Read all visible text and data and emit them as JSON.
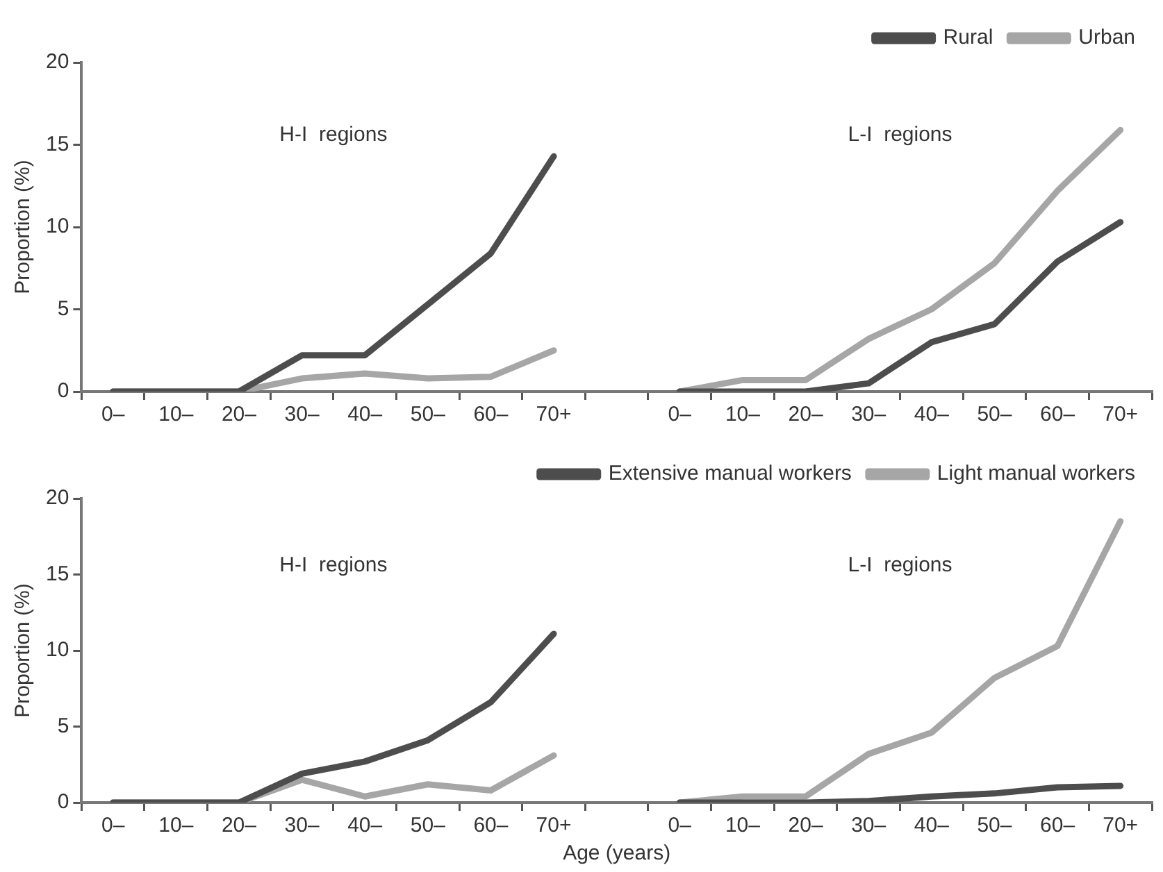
{
  "chart_data": [
    {
      "type": "line",
      "ylabel": "Proportion (%)",
      "categories": [
        "0–",
        "10–",
        "20–",
        "30–",
        "40–",
        "50–",
        "60–",
        "70+",
        null,
        "0–",
        "10–",
        "20–",
        "30–",
        "40–",
        "50–",
        "60–",
        "70+"
      ],
      "ylim": [
        0,
        20
      ],
      "yticks": [
        0,
        5,
        10,
        15,
        20
      ],
      "grid": false,
      "legend": "top right",
      "marker": "none",
      "line_style": "solid",
      "annotations": [
        "H-I  regions",
        "L-I  regions"
      ],
      "series": [
        {
          "name": "Rural",
          "color": "#4d4d4d",
          "values": [
            0,
            0,
            0,
            2.2,
            2.2,
            5.3,
            8.4,
            14.3,
            null,
            0,
            0,
            0,
            0.5,
            3.0,
            4.1,
            7.9,
            10.3
          ]
        },
        {
          "name": "Urban",
          "color": "#a6a6a6",
          "values": [
            0,
            0,
            0,
            0.8,
            1.1,
            0.8,
            0.9,
            2.5,
            null,
            0,
            0.7,
            0.7,
            3.2,
            5.0,
            7.8,
            12.2,
            15.9
          ]
        }
      ]
    },
    {
      "type": "line",
      "ylabel": "Proportion (%)",
      "xlabel": "Age (years)",
      "categories": [
        "0–",
        "10–",
        "20–",
        "30–",
        "40–",
        "50–",
        "60–",
        "70+",
        null,
        "0–",
        "10–",
        "20–",
        "30–",
        "40–",
        "50–",
        "60–",
        "70+"
      ],
      "ylim": [
        0,
        20
      ],
      "yticks": [
        0,
        5,
        10,
        15,
        20
      ],
      "grid": false,
      "legend": "top right",
      "marker": "none",
      "line_style": "solid",
      "annotations": [
        "H-I  regions",
        "L-I  regions"
      ],
      "series": [
        {
          "name": "Extensive manual workers",
          "color": "#4d4d4d",
          "values": [
            0,
            0,
            0,
            1.9,
            2.7,
            4.1,
            6.6,
            11.1,
            null,
            0,
            0,
            0,
            0.1,
            0.4,
            0.6,
            1.0,
            1.1
          ]
        },
        {
          "name": "Light manual workers",
          "color": "#a6a6a6",
          "values": [
            0,
            0,
            0,
            1.5,
            0.4,
            1.2,
            0.8,
            3.1,
            null,
            0,
            0.4,
            0.4,
            3.2,
            4.6,
            8.2,
            10.3,
            18.5
          ]
        }
      ]
    }
  ]
}
